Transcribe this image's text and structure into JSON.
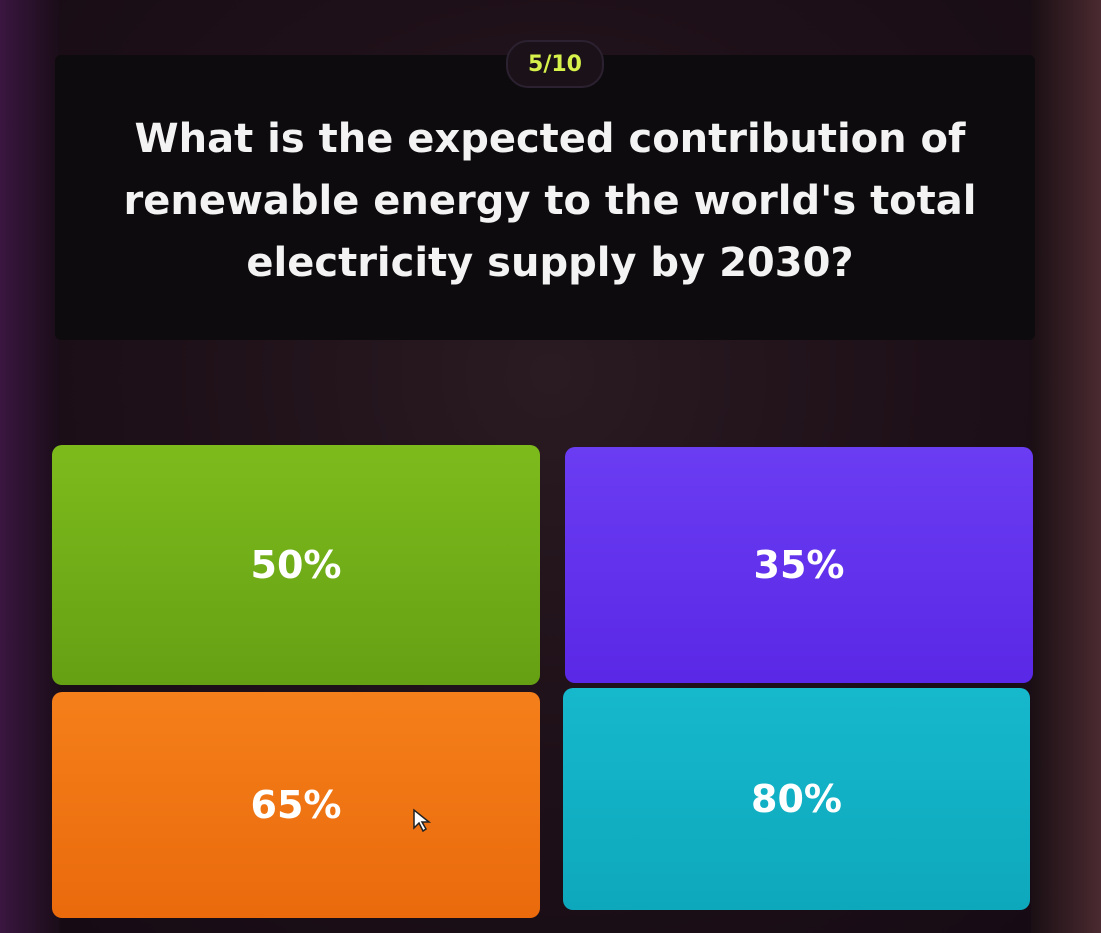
{
  "progress": {
    "label": "5/10",
    "current": 5,
    "total": 10
  },
  "question": "What is the expected contribution of renewable energy to the world's total electricity supply by 2030?",
  "answers": [
    {
      "label": "50%",
      "color": "#72ae18"
    },
    {
      "label": "35%",
      "color": "#6232ec"
    },
    {
      "label": "65%",
      "color": "#f07514"
    },
    {
      "label": "80%",
      "color": "#12b0c4"
    }
  ]
}
